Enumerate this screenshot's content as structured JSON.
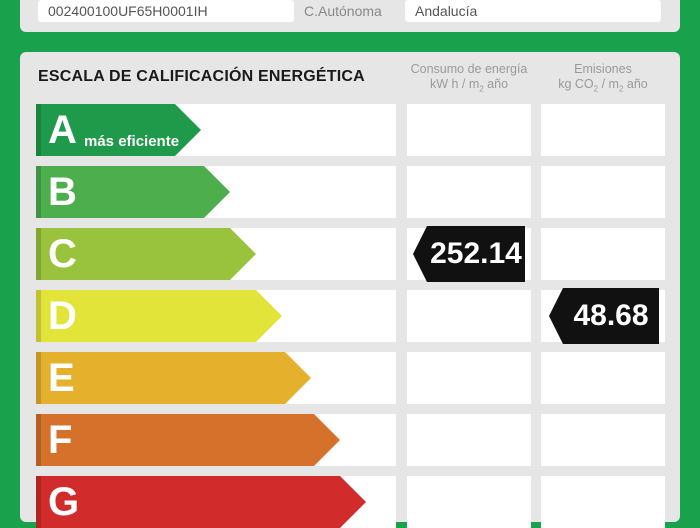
{
  "header": {
    "reference_value": "002400100UF65H0001IH",
    "region_label": "C.Autónoma",
    "region_value": "Andalucía"
  },
  "scale": {
    "title": "ESCALA DE CALIFICACIÓN ENERGÉTICA",
    "energy_head_line1": "Consumo de energía",
    "energy_head_unit_a": "kW h / m",
    "energy_head_sub": "2",
    "energy_head_unit_b": " año",
    "emis_head_line1": "Emisiones",
    "emis_head_unit_a": "kg CO",
    "emis_head_sub1": "2",
    "emis_head_unit_b": " / m",
    "emis_head_sub2": "2",
    "emis_head_unit_c": " año",
    "top_note": "más eficiente",
    "ratings": [
      {
        "letter": "A",
        "color": "#1e9a4a"
      },
      {
        "letter": "B",
        "color": "#4cae4c"
      },
      {
        "letter": "C",
        "color": "#99c33c"
      },
      {
        "letter": "D",
        "color": "#e3e43a"
      },
      {
        "letter": "E",
        "color": "#e5b02b"
      },
      {
        "letter": "F",
        "color": "#d5712a"
      },
      {
        "letter": "G",
        "color": "#d12b2b"
      }
    ],
    "energy_rating": "C",
    "energy_value": "252.14",
    "emissions_rating": "D",
    "emissions_value": "48.68"
  }
}
